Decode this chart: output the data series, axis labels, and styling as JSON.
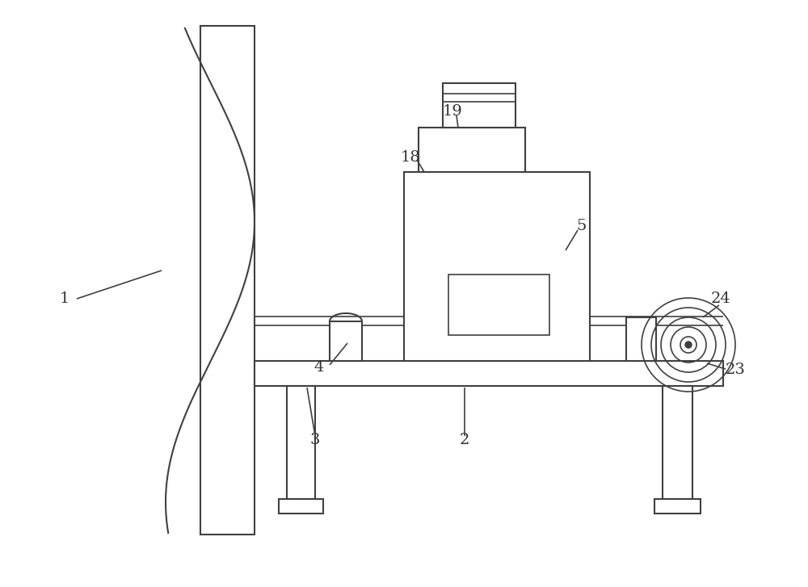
{
  "bg_color": "#ffffff",
  "line_color": "#404040",
  "line_width": 1.5,
  "thin_lw": 1.2,
  "fig_width": 10.0,
  "fig_height": 7.27,
  "dpi": 100
}
